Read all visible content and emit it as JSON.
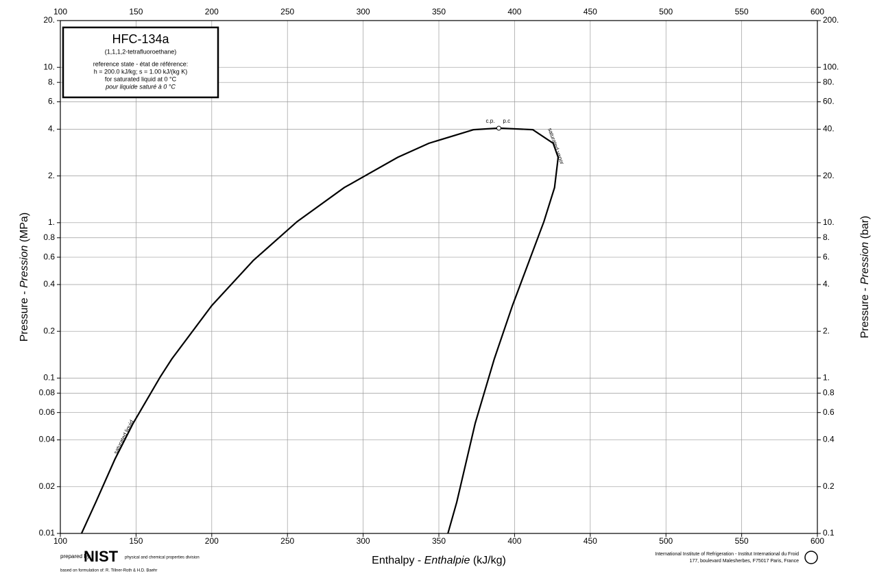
{
  "chart_data": {
    "type": "line",
    "title": "HFC-134a",
    "subtitle": "(1,1,1,2-tetrafluoroethane)",
    "notes": [
      "reference state - état de référence:",
      "h = 200.0 kJ/kg;  s = 1.00 kJ/(kg K)",
      "for saturated liquid at 0 °C",
      "pour liquide saturé à 0 °C"
    ],
    "xlabel": [
      "Enthalpy - ",
      "Enthalpie",
      "  (kJ/kg)"
    ],
    "ylabel": [
      "Pressure - ",
      "Pression",
      "  (MPa)"
    ],
    "y2label": [
      "Pressure - ",
      "Pression",
      "  (bar)"
    ],
    "critical_point_labels": [
      "c.p.",
      "p.c"
    ],
    "yscale": "log",
    "grid": true,
    "xlim": [
      100,
      600
    ],
    "xticks": [
      100,
      150,
      200,
      250,
      300,
      350,
      400,
      450,
      500,
      550,
      600
    ],
    "ylim": [
      0.01,
      20
    ],
    "yticks": [
      {
        "value": 20,
        "label": "20."
      },
      {
        "value": 10,
        "label": "10."
      },
      {
        "value": 8,
        "label": "8."
      },
      {
        "value": 6,
        "label": "6."
      },
      {
        "value": 4,
        "label": "4."
      },
      {
        "value": 2,
        "label": "2."
      },
      {
        "value": 1,
        "label": "1."
      },
      0.8,
      0.6,
      0.4,
      0.2,
      0.1,
      0.08,
      0.06,
      0.04,
      0.02,
      0.01
    ],
    "y2lim": [
      0.1,
      200
    ],
    "y2ticks": [
      {
        "value": 200,
        "label": "200."
      },
      {
        "value": 100,
        "label": "100."
      },
      {
        "value": 80,
        "label": "80."
      },
      {
        "value": 60,
        "label": "60."
      },
      {
        "value": 40,
        "label": "40."
      },
      {
        "value": 20,
        "label": "20."
      },
      {
        "value": 10,
        "label": "10."
      },
      {
        "value": 8,
        "label": "8."
      },
      {
        "value": 6,
        "label": "6."
      },
      {
        "value": 4,
        "label": "4."
      },
      {
        "value": 2,
        "label": "2."
      },
      {
        "value": 1,
        "label": "1."
      },
      0.8,
      0.6,
      0.4,
      0.2,
      0.1
    ],
    "series": [
      {
        "name": "saturated liquid",
        "color": "#000000",
        "x": [
          114,
          123.4,
          136,
          148.1,
          166,
          173.6,
          200,
          227.5,
          256.4,
          287.5,
          322.8,
          343.4,
          373,
          389.6
        ],
        "values": [
          0.01,
          0.0159,
          0.03,
          0.0512,
          0.1017,
          0.1327,
          0.2928,
          0.5717,
          1.0166,
          1.6818,
          2.6332,
          3.2442,
          3.972,
          4.059
        ]
      },
      {
        "name": "saturated vapor",
        "color": "#000000",
        "x": [
          389.6,
          412,
          425.5,
          428.8,
          426.4,
          419.4,
          409.8,
          398.6,
          386.6,
          374,
          361.8,
          356
        ],
        "values": [
          4.059,
          3.972,
          3.2442,
          2.6332,
          1.6818,
          1.0166,
          0.5717,
          0.2928,
          0.1327,
          0.0512,
          0.0159,
          0.01
        ]
      }
    ],
    "footer_left": [
      "prepared by:",
      "NIST",
      "physical and chemical properties division",
      "based on formulation of: R. Tillner-Roth & H.D. Baehr"
    ],
    "footer_right": [
      "International Institute of Refrigeration - Institut International du Froid",
      "177, boulevard Malesherbes, F75017 Paris, France"
    ]
  }
}
